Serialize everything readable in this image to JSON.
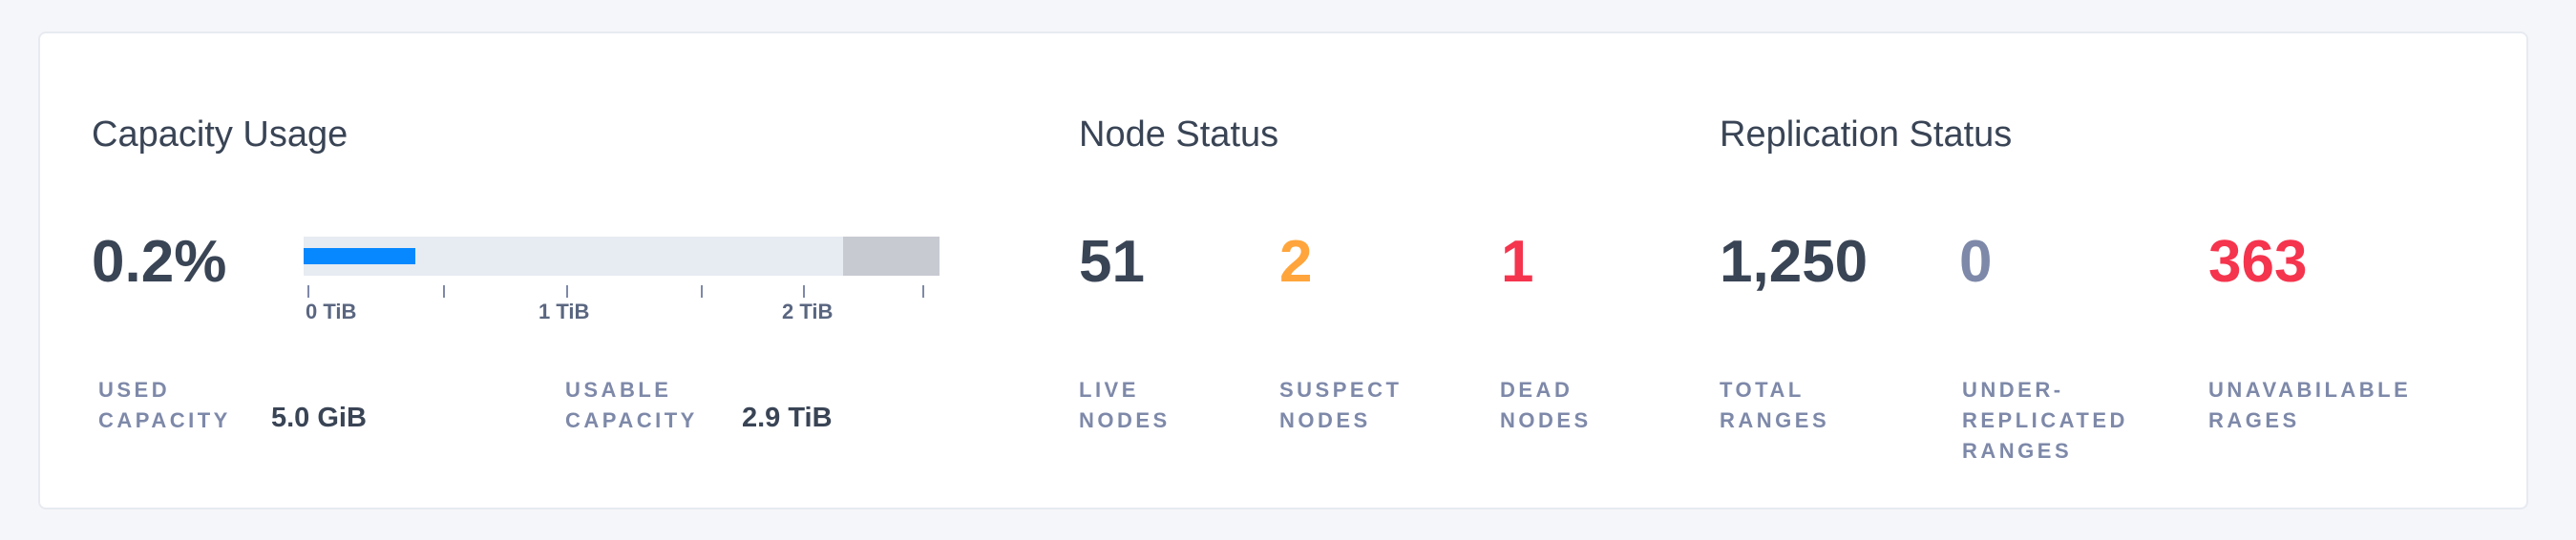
{
  "capacity": {
    "title": "Capacity Usage",
    "percent": "0.2%",
    "bar": {
      "used_fraction": 0.176,
      "unusable_fraction": 0.152,
      "used_color": "#0788ff",
      "track_color": "#e7ebf2",
      "reserved_color": "#c8cad2"
    },
    "ticks": [
      "0 TiB",
      "1 TiB",
      "2 TiB"
    ],
    "used_label": "USED CAPACITY",
    "used_label_l1": "USED",
    "used_label_l2": "CAPACITY",
    "used_value": "5.0 GiB",
    "usable_label_l1": "USABLE",
    "usable_label_l2": "CAPACITY",
    "usable_value": "2.9 TiB"
  },
  "node_status": {
    "title": "Node Status",
    "stats": [
      {
        "value": "51",
        "label_l1": "LIVE",
        "label_l2": "NODES",
        "color": "#394455"
      },
      {
        "value": "2",
        "label_l1": "SUSPECT",
        "label_l2": "NODES",
        "color": "#ffa53b"
      },
      {
        "value": "1",
        "label_l1": "DEAD",
        "label_l2": "NODES",
        "color": "#f5344d"
      }
    ]
  },
  "replication_status": {
    "title": "Replication Status",
    "stats": [
      {
        "value": "1,250",
        "label_l1": "TOTAL",
        "label_l2": "RANGES",
        "color": "#394455"
      },
      {
        "value": "0",
        "label_l1": "UNDER-",
        "label_l2": "REPLICATED",
        "label_l3": "RANGES",
        "color": "#7e89a9"
      },
      {
        "value": "363",
        "label_l1": "UNAVABILABLE",
        "label_l2": "RAGES",
        "color": "#f5344d"
      }
    ]
  }
}
